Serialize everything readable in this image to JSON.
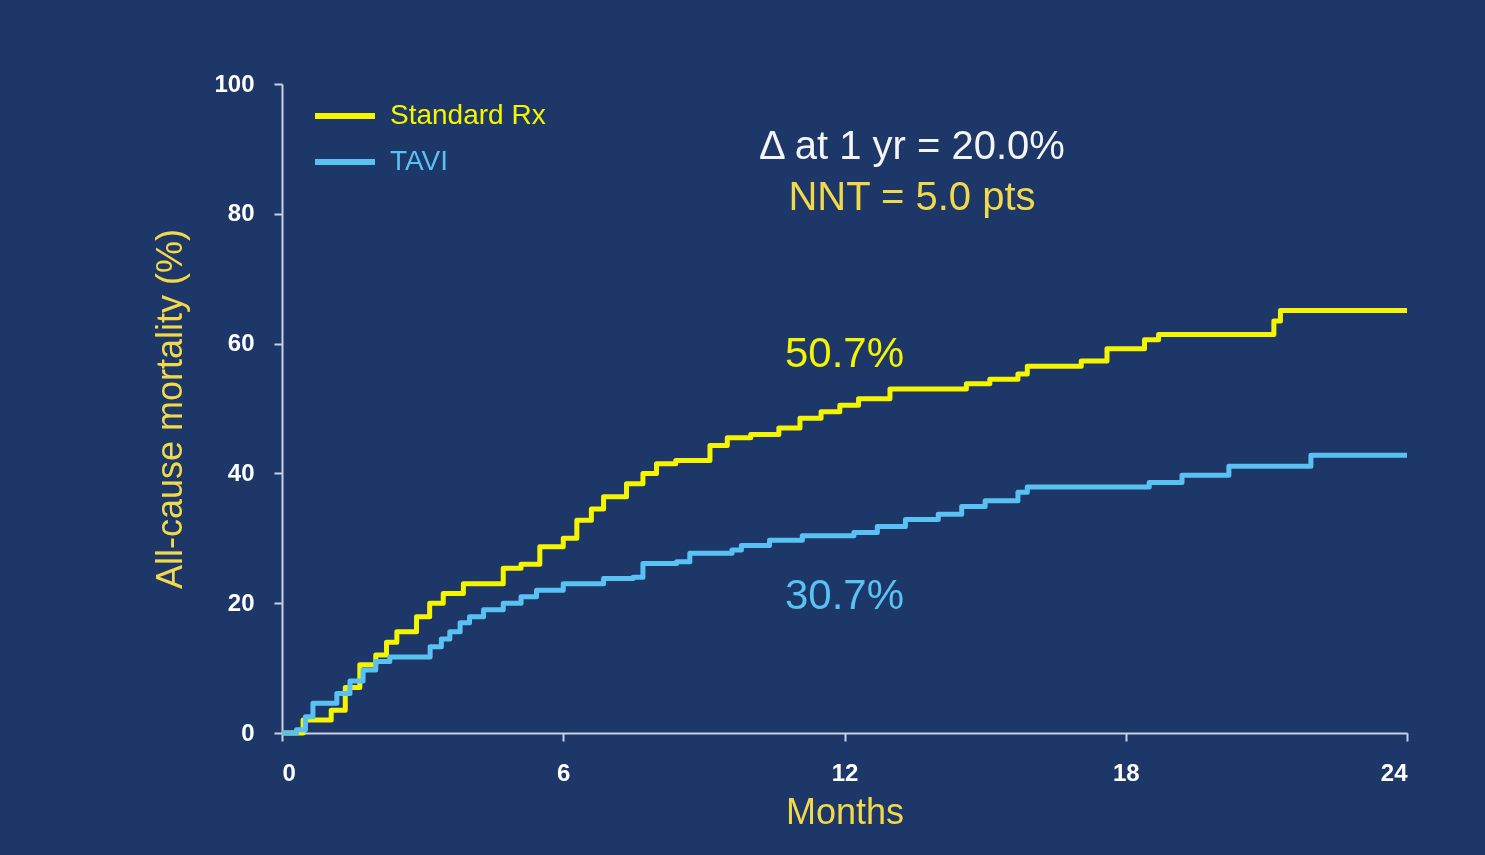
{
  "chart_data": {
    "type": "step",
    "xlabel": "Months",
    "ylabel": "All-cause mortality (%)",
    "annotations": [
      "Δ at 1 yr = 20.0%",
      "NNT = 5.0 pts",
      {
        "text": "50.7%",
        "x": 12,
        "y": 50.7
      },
      {
        "text": "30.7%",
        "x": 12,
        "y": 30.7
      }
    ],
    "xlim": [
      0,
      24
    ],
    "xticks": [
      0,
      6,
      12,
      18,
      24
    ],
    "ylim": [
      0,
      100
    ],
    "yticks": [
      0,
      20,
      40,
      60,
      80,
      100
    ],
    "grid": false,
    "legend": "top left",
    "series": [
      {
        "name": "Standard Rx",
        "color": "#f5f500",
        "x": [
          0,
          0.45,
          1.05,
          1.35,
          1.66,
          2.0,
          2.23,
          2.45,
          2.87,
          3.15,
          3.44,
          3.87,
          4.72,
          5.1,
          5.5,
          6.0,
          6.29,
          6.6,
          6.86,
          7.35,
          7.7,
          7.99,
          8.4,
          9.13,
          9.5,
          10.0,
          10.6,
          11.05,
          11.5,
          11.9,
          12.3,
          12.97,
          14.6,
          15.1,
          15.7,
          15.9,
          17.05,
          17.6,
          18.4,
          18.7,
          21.16,
          21.3,
          24
        ],
        "values": [
          0,
          2,
          3.5,
          7,
          10.5,
          12,
          14,
          15.6,
          17.9,
          20,
          21.5,
          23,
          25.4,
          26,
          28.7,
          30,
          32.8,
          34.5,
          36.4,
          38.4,
          40,
          41.5,
          42,
          44.3,
          45.5,
          46,
          47,
          48.5,
          49.5,
          50.5,
          51.5,
          53,
          53.8,
          54.5,
          55.3,
          56.5,
          57.3,
          59.2,
          60.6,
          61.4,
          63.5,
          65.1,
          65.1
        ]
      },
      {
        "name": "TAVI",
        "color": "#5ac2f2",
        "x": [
          0,
          0.31,
          0.5,
          0.66,
          1.17,
          1.45,
          1.73,
          2.0,
          2.3,
          3.16,
          3.4,
          3.58,
          3.8,
          4.0,
          4.3,
          4.72,
          5.1,
          5.43,
          6.0,
          6.86,
          7.49,
          7.7,
          8.42,
          8.7,
          9.6,
          9.8,
          10.4,
          11.1,
          12.2,
          12.7,
          13.3,
          14.0,
          14.5,
          15.0,
          15.7,
          15.9,
          18.5,
          19.2,
          20.2,
          21.95,
          24
        ],
        "values": [
          0,
          0.5,
          2.5,
          4.6,
          6.1,
          8,
          9.7,
          11,
          11.7,
          13.3,
          14.5,
          15.6,
          17,
          17.9,
          19,
          20,
          21,
          22,
          23,
          23.8,
          24,
          26.1,
          26.4,
          27.7,
          28.2,
          28.9,
          29.7,
          30.4,
          30.9,
          31.8,
          32.9,
          33.7,
          34.9,
          35.8,
          37.1,
          37.9,
          38.6,
          39.7,
          41.1,
          42.8,
          42.8
        ]
      }
    ]
  }
}
